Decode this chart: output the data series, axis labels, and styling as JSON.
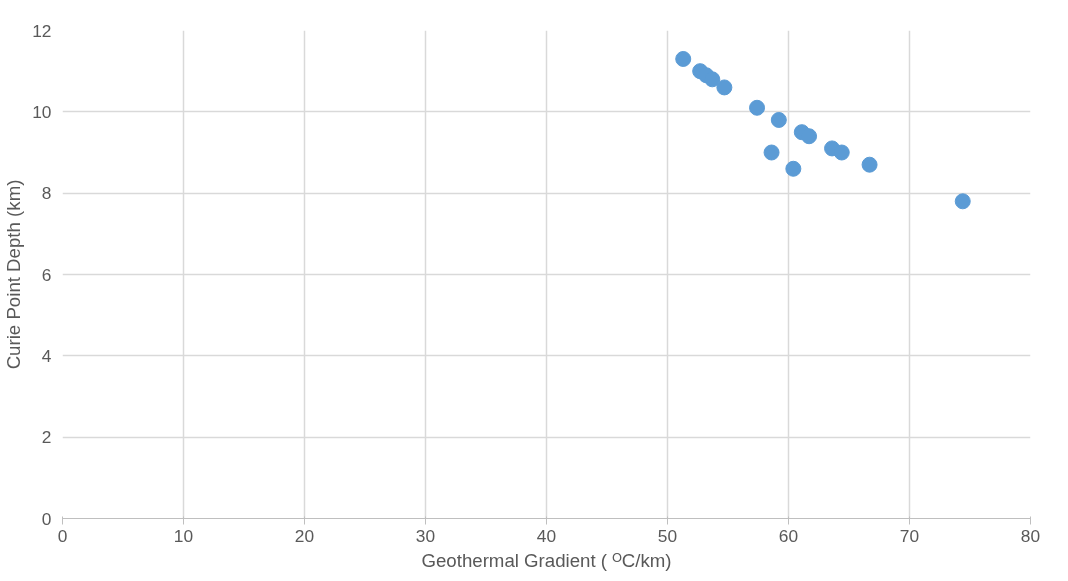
{
  "chart_data": {
    "type": "scatter",
    "xlabel": "Geothermal Gradient ( ᴼC/km)",
    "ylabel": "Curie Point Depth (km)",
    "x": [
      51.3,
      52.7,
      53.2,
      53.7,
      54.7,
      57.4,
      59.2,
      58.6,
      60.4,
      61.1,
      61.7,
      63.6,
      64.4,
      66.7,
      74.4
    ],
    "series": [
      {
        "color": "#5b9bd5",
        "values": [
          11.3,
          11.0,
          10.9,
          10.8,
          10.6,
          10.1,
          9.8,
          9.0,
          8.6,
          9.5,
          9.4,
          9.1,
          9.0,
          8.7,
          7.8
        ]
      }
    ],
    "xlim": [
      0,
      80
    ],
    "xticks": [
      0,
      10,
      20,
      30,
      40,
      50,
      60,
      70,
      80
    ],
    "ylim": [
      0,
      12
    ],
    "yticks": [
      0,
      2,
      4,
      6,
      8,
      10,
      12
    ],
    "grid": true,
    "marker": "circle"
  }
}
